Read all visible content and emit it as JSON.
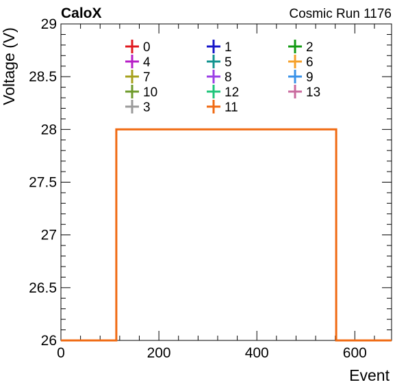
{
  "header": {
    "left_label": "CaloX",
    "right_label": "Cosmic Run 1176"
  },
  "chart_data": {
    "type": "line",
    "title": "",
    "xlabel": "Event",
    "ylabel": "Voltage (V)",
    "xlim": [
      0,
      675
    ],
    "ylim": [
      26,
      29
    ],
    "x_ticks": [
      "0",
      "200",
      "400",
      "600"
    ],
    "x_tick_values": [
      0,
      200,
      400,
      600
    ],
    "y_ticks": [
      "26",
      "26.5",
      "27",
      "27.5",
      "28",
      "28.5",
      "29"
    ],
    "y_tick_values": [
      26,
      26.5,
      27,
      27.5,
      28,
      28.5,
      29
    ],
    "grid": false,
    "legend_placement": "top",
    "legend_columns": 3,
    "series": [
      {
        "name": "0",
        "color": "#e0191f"
      },
      {
        "name": "1",
        "color": "#1515c9"
      },
      {
        "name": "2",
        "color": "#129a12"
      },
      {
        "name": "4",
        "color": "#b71fc7"
      },
      {
        "name": "5",
        "color": "#12938f"
      },
      {
        "name": "6",
        "color": "#f5a02a"
      },
      {
        "name": "7",
        "color": "#a6a01c"
      },
      {
        "name": "8",
        "color": "#9b3fe6"
      },
      {
        "name": "9",
        "color": "#3a92e8"
      },
      {
        "name": "10",
        "color": "#6e9a2a"
      },
      {
        "name": "12",
        "color": "#1ec47a"
      },
      {
        "name": "13",
        "color": "#c96a9e"
      },
      {
        "name": "3",
        "color": "#9a9a9a"
      },
      {
        "name": "11",
        "color": "#f06a12",
        "x": [
          0,
          113,
          113,
          562,
          562,
          675
        ],
        "y": [
          26,
          26,
          28,
          28,
          26,
          26
        ]
      }
    ]
  }
}
